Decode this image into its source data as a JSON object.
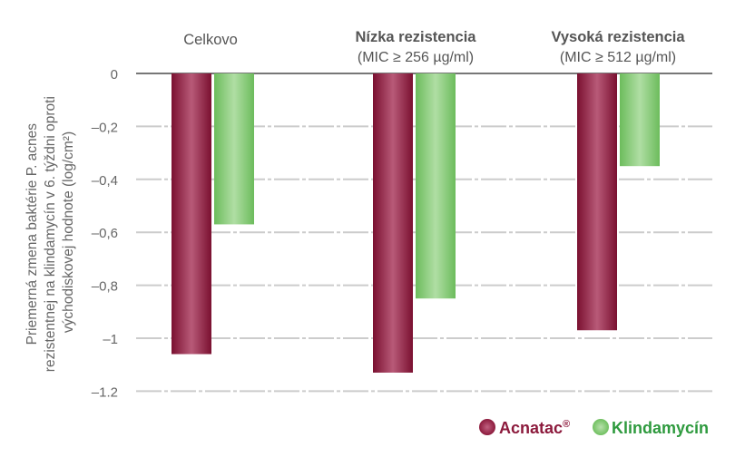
{
  "chart_data": {
    "type": "bar",
    "ylabel_lines": [
      "Priemerná zmena baktérie P. acnes",
      "rezistentnej na klindamycín v 6. týždni oproti",
      "východiskovej hodnote (log/cm²)"
    ],
    "groups": [
      {
        "title": "Celkovo",
        "subtitle": "",
        "bold": false
      },
      {
        "title": "Nízka rezistencia",
        "subtitle": "(MIC ≥ 256 µg/ml)",
        "bold": true
      },
      {
        "title": "Vysoká rezistencia",
        "subtitle": "(MIC ≥ 512 µg/ml)",
        "bold": true
      }
    ],
    "series": [
      {
        "name": "Acnatac",
        "sup": "®",
        "color": "#8c1a3c",
        "values": [
          -1.06,
          -1.13,
          -0.97
        ]
      },
      {
        "name": "Klindamycín",
        "color": "#7cc46c",
        "values": [
          -0.57,
          -0.85,
          -0.35
        ]
      }
    ],
    "ylim": [
      -1.2,
      0
    ],
    "yticks": [
      0,
      -0.2,
      -0.4,
      -0.6,
      -0.8,
      -1,
      -1.2
    ],
    "ytick_labels": [
      "0",
      "–0,2",
      "–0,4",
      "–0,6",
      "–0,8",
      "–1",
      "–1.2"
    ],
    "grid": true,
    "legend": "bottom-right"
  }
}
